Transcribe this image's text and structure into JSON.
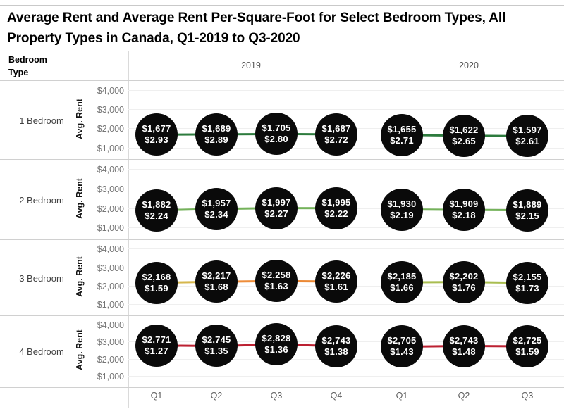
{
  "title": "Average Rent and Average Rent Per-Square-Foot for Select Bedroom Types, All Property Types in Canada, Q1-2019 to Q3-2020",
  "header": {
    "row_dimension_label": "Bedroom Type",
    "years": [
      "2019",
      "2020"
    ]
  },
  "chart_data": {
    "type": "line",
    "title": "Average Rent and Average Rent Per-Square-Foot for Select Bedroom Types, All Property Types in Canada, Q1-2019 to Q3-2020",
    "y_axis": {
      "label": "Avg. Rent",
      "tick_values": [
        4000,
        3000,
        2000,
        1000
      ],
      "tick_labels": [
        "$4,000",
        "$3,000",
        "$2,000",
        "$1,000"
      ],
      "ylim": [
        500,
        4500
      ],
      "grid": true
    },
    "column_groups": [
      {
        "year": "2019",
        "quarters": [
          "Q1",
          "Q2",
          "Q3",
          "Q4"
        ]
      },
      {
        "year": "2020",
        "quarters": [
          "Q1",
          "Q2",
          "Q3"
        ]
      }
    ],
    "point_fill": "#0a0a0a",
    "point_text_color": "#ffffff",
    "rows": [
      {
        "bedroom_type": "1 Bedroom",
        "groups": [
          {
            "year": "2019",
            "points": [
              {
                "quarter": "Q1",
                "avg_rent": 1677,
                "avg_rent_label": "$1,677",
                "rent_per_sqft": 2.93,
                "rent_per_sqft_label": "$2.93"
              },
              {
                "quarter": "Q2",
                "avg_rent": 1689,
                "avg_rent_label": "$1,689",
                "rent_per_sqft": 2.89,
                "rent_per_sqft_label": "$2.89"
              },
              {
                "quarter": "Q3",
                "avg_rent": 1705,
                "avg_rent_label": "$1,705",
                "rent_per_sqft": 2.8,
                "rent_per_sqft_label": "$2.80"
              },
              {
                "quarter": "Q4",
                "avg_rent": 1687,
                "avg_rent_label": "$1,687",
                "rent_per_sqft": 2.72,
                "rent_per_sqft_label": "$2.72"
              }
            ],
            "segment_colors": [
              "#2d7b3e",
              "#2d7b3e",
              "#2d7b3e"
            ]
          },
          {
            "year": "2020",
            "points": [
              {
                "quarter": "Q1",
                "avg_rent": 1655,
                "avg_rent_label": "$1,655",
                "rent_per_sqft": 2.71,
                "rent_per_sqft_label": "$2.71"
              },
              {
                "quarter": "Q2",
                "avg_rent": 1622,
                "avg_rent_label": "$1,622",
                "rent_per_sqft": 2.65,
                "rent_per_sqft_label": "$2.65"
              },
              {
                "quarter": "Q3",
                "avg_rent": 1597,
                "avg_rent_label": "$1,597",
                "rent_per_sqft": 2.61,
                "rent_per_sqft_label": "$2.61"
              }
            ],
            "segment_colors": [
              "#2d7b3e",
              "#2d7b3e"
            ]
          }
        ]
      },
      {
        "bedroom_type": "2 Bedroom",
        "groups": [
          {
            "year": "2019",
            "points": [
              {
                "quarter": "Q1",
                "avg_rent": 1882,
                "avg_rent_label": "$1,882",
                "rent_per_sqft": 2.24,
                "rent_per_sqft_label": "$2.24"
              },
              {
                "quarter": "Q2",
                "avg_rent": 1957,
                "avg_rent_label": "$1,957",
                "rent_per_sqft": 2.34,
                "rent_per_sqft_label": "$2.34"
              },
              {
                "quarter": "Q3",
                "avg_rent": 1997,
                "avg_rent_label": "$1,997",
                "rent_per_sqft": 2.27,
                "rent_per_sqft_label": "$2.27"
              },
              {
                "quarter": "Q4",
                "avg_rent": 1995,
                "avg_rent_label": "$1,995",
                "rent_per_sqft": 2.22,
                "rent_per_sqft_label": "$2.22"
              }
            ],
            "segment_colors": [
              "#74b25a",
              "#74b25a",
              "#74b25a"
            ]
          },
          {
            "year": "2020",
            "points": [
              {
                "quarter": "Q1",
                "avg_rent": 1930,
                "avg_rent_label": "$1,930",
                "rent_per_sqft": 2.19,
                "rent_per_sqft_label": "$2.19"
              },
              {
                "quarter": "Q2",
                "avg_rent": 1909,
                "avg_rent_label": "$1,909",
                "rent_per_sqft": 2.18,
                "rent_per_sqft_label": "$2.18"
              },
              {
                "quarter": "Q3",
                "avg_rent": 1889,
                "avg_rent_label": "$1,889",
                "rent_per_sqft": 2.15,
                "rent_per_sqft_label": "$2.15"
              }
            ],
            "segment_colors": [
              "#74b25a",
              "#74b25a"
            ]
          }
        ]
      },
      {
        "bedroom_type": "3 Bedroom",
        "groups": [
          {
            "year": "2019",
            "points": [
              {
                "quarter": "Q1",
                "avg_rent": 2168,
                "avg_rent_label": "$2,168",
                "rent_per_sqft": 1.59,
                "rent_per_sqft_label": "$1.59"
              },
              {
                "quarter": "Q2",
                "avg_rent": 2217,
                "avg_rent_label": "$2,217",
                "rent_per_sqft": 1.68,
                "rent_per_sqft_label": "$1.68"
              },
              {
                "quarter": "Q3",
                "avg_rent": 2258,
                "avg_rent_label": "$2,258",
                "rent_per_sqft": 1.63,
                "rent_per_sqft_label": "$1.63"
              },
              {
                "quarter": "Q4",
                "avg_rent": 2226,
                "avg_rent_label": "$2,226",
                "rent_per_sqft": 1.61,
                "rent_per_sqft_label": "$1.61"
              }
            ],
            "segment_colors": [
              "#d6b74d",
              "#ee8d3a",
              "#eb8834"
            ]
          },
          {
            "year": "2020",
            "points": [
              {
                "quarter": "Q1",
                "avg_rent": 2185,
                "avg_rent_label": "$2,185",
                "rent_per_sqft": 1.66,
                "rent_per_sqft_label": "$1.66"
              },
              {
                "quarter": "Q2",
                "avg_rent": 2202,
                "avg_rent_label": "$2,202",
                "rent_per_sqft": 1.76,
                "rent_per_sqft_label": "$1.76"
              },
              {
                "quarter": "Q3",
                "avg_rent": 2155,
                "avg_rent_label": "$2,155",
                "rent_per_sqft": 1.73,
                "rent_per_sqft_label": "$1.73"
              }
            ],
            "segment_colors": [
              "#a9bd50",
              "#a9bd50"
            ]
          }
        ]
      },
      {
        "bedroom_type": "4 Bedroom",
        "groups": [
          {
            "year": "2019",
            "points": [
              {
                "quarter": "Q1",
                "avg_rent": 2771,
                "avg_rent_label": "$2,771",
                "rent_per_sqft": 1.27,
                "rent_per_sqft_label": "$1.27"
              },
              {
                "quarter": "Q2",
                "avg_rent": 2745,
                "avg_rent_label": "$2,745",
                "rent_per_sqft": 1.35,
                "rent_per_sqft_label": "$1.35"
              },
              {
                "quarter": "Q3",
                "avg_rent": 2828,
                "avg_rent_label": "$2,828",
                "rent_per_sqft": 1.36,
                "rent_per_sqft_label": "$1.36"
              },
              {
                "quarter": "Q4",
                "avg_rent": 2743,
                "avg_rent_label": "$2,743",
                "rent_per_sqft": 1.38,
                "rent_per_sqft_label": "$1.38"
              }
            ],
            "segment_colors": [
              "#bc2132",
              "#bc2132",
              "#bc2132"
            ]
          },
          {
            "year": "2020",
            "points": [
              {
                "quarter": "Q1",
                "avg_rent": 2705,
                "avg_rent_label": "$2,705",
                "rent_per_sqft": 1.43,
                "rent_per_sqft_label": "$1.43"
              },
              {
                "quarter": "Q2",
                "avg_rent": 2743,
                "avg_rent_label": "$2,743",
                "rent_per_sqft": 1.48,
                "rent_per_sqft_label": "$1.48"
              },
              {
                "quarter": "Q3",
                "avg_rent": 2725,
                "avg_rent_label": "$2,725",
                "rent_per_sqft": 1.59,
                "rent_per_sqft_label": "$1.59"
              }
            ],
            "segment_colors": [
              "#bc2132",
              "#bc2132"
            ]
          }
        ]
      }
    ]
  }
}
